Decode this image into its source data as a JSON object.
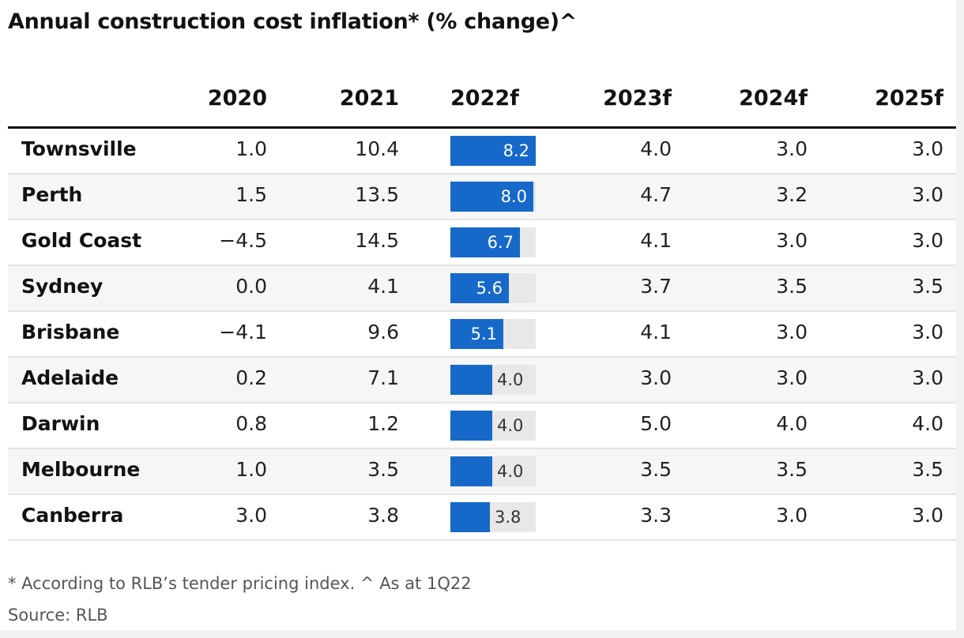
{
  "title": "Annual construction cost inflation* (% change)^",
  "columns": [
    "2020",
    "2021",
    "2022f",
    "2023f",
    "2024f",
    "2025f"
  ],
  "footnote": "* According to RLB’s tender pricing index. ^ As at 1Q22",
  "source": "Source: RLB",
  "colors": {
    "bar": "#1669c9",
    "track": "#e8e8e8"
  },
  "chart_data": {
    "type": "table",
    "bar_column": "2022f",
    "bar_max": 8.2,
    "rows": [
      {
        "city": "Townsville",
        "values": [
          "1.0",
          "10.4",
          "8.2",
          "4.0",
          "3.0",
          "3.0"
        ]
      },
      {
        "city": "Perth",
        "values": [
          "1.5",
          "13.5",
          "8.0",
          "4.7",
          "3.2",
          "3.0"
        ]
      },
      {
        "city": "Gold Coast",
        "values": [
          "−4.5",
          "14.5",
          "6.7",
          "4.1",
          "3.0",
          "3.0"
        ]
      },
      {
        "city": "Sydney",
        "values": [
          "0.0",
          "4.1",
          "5.6",
          "3.7",
          "3.5",
          "3.5"
        ]
      },
      {
        "city": "Brisbane",
        "values": [
          "−4.1",
          "9.6",
          "5.1",
          "4.1",
          "3.0",
          "3.0"
        ]
      },
      {
        "city": "Adelaide",
        "values": [
          "0.2",
          "7.1",
          "4.0",
          "3.0",
          "3.0",
          "3.0"
        ]
      },
      {
        "city": "Darwin",
        "values": [
          "0.8",
          "1.2",
          "4.0",
          "5.0",
          "4.0",
          "4.0"
        ]
      },
      {
        "city": "Melbourne",
        "values": [
          "1.0",
          "3.5",
          "4.0",
          "3.5",
          "3.5",
          "3.5"
        ]
      },
      {
        "city": "Canberra",
        "values": [
          "3.0",
          "3.8",
          "3.8",
          "3.3",
          "3.0",
          "3.0"
        ]
      }
    ]
  }
}
